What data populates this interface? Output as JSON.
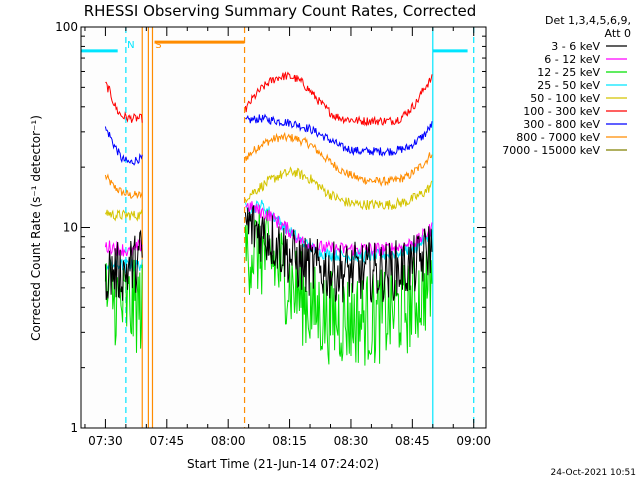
{
  "chart_data": {
    "type": "line",
    "title": "RHESSI Observing Summary Count Rates, Corrected",
    "xlabel": "Start Time (21-Jun-14 07:24:02)",
    "ylabel": "Corrected Count Rate (s⁻¹ detector⁻¹)",
    "yscale": "log",
    "ylim": [
      1,
      100
    ],
    "xlim": [
      "07:24:02",
      "09:03:00"
    ],
    "x_ticks": [
      "07:30",
      "07:45",
      "08:00",
      "08:15",
      "08:30",
      "08:45",
      "09:00"
    ],
    "y_ticks": [
      "1",
      "10",
      "100"
    ],
    "legend_header": [
      "Det 1,3,4,5,6,9,",
      "Att 0"
    ],
    "legend_placement": "right",
    "timestamp": "24-Oct-2021 10:51",
    "markers": [
      {
        "label": "N",
        "time": "07:35:00",
        "color": "#00e5ff",
        "style": "dashed"
      },
      {
        "label": "S",
        "time": "07:41:30",
        "color": "#ff8c00",
        "style": "solid"
      }
    ],
    "vertical_lines": [
      {
        "time": "07:39:00",
        "color": "#ff8c00",
        "style": "solid"
      },
      {
        "time": "07:40:30",
        "color": "#ff8c00",
        "style": "solid"
      },
      {
        "time": "08:04:00",
        "color": "#ff8c00",
        "style": "dashed"
      },
      {
        "time": "08:50:00",
        "color": "#00e5ff",
        "style": "solid"
      },
      {
        "time": "09:00:00",
        "color": "#00e5ff",
        "style": "dashed"
      }
    ],
    "bars": [
      {
        "color": "#00e5ff",
        "from": "07:24:02",
        "to": "07:33:00",
        "value": 76
      },
      {
        "color": "#00e5ff",
        "from": "08:50:00",
        "to": "08:58:30",
        "value": 76
      },
      {
        "color": "#ff8c00",
        "from": "07:42:00",
        "to": "08:04:00",
        "value": 84
      }
    ],
    "series": [
      {
        "name": "3 - 6 keV",
        "color": "#000000",
        "noise": 0.35,
        "points": [
          [
            "07:30",
            6
          ],
          [
            "07:31",
            6
          ],
          [
            "07:32",
            6
          ],
          [
            "07:33",
            6
          ],
          [
            "07:34",
            6
          ],
          [
            "07:35",
            6
          ],
          [
            "07:36",
            6.5
          ],
          [
            "07:37",
            6.5
          ],
          [
            "07:38",
            7
          ],
          [
            "07:39",
            7.5
          ],
          [
            "08:04",
            10.5
          ],
          [
            "08:06",
            10
          ],
          [
            "08:10",
            9
          ],
          [
            "08:14",
            7.5
          ],
          [
            "08:18",
            6.5
          ],
          [
            "08:22",
            6.2
          ],
          [
            "08:26",
            6
          ],
          [
            "08:30",
            6
          ],
          [
            "08:34",
            6
          ],
          [
            "08:38",
            6
          ],
          [
            "08:42",
            6.2
          ],
          [
            "08:46",
            6.5
          ],
          [
            "08:48",
            7.2
          ],
          [
            "08:50",
            8.5
          ]
        ],
        "gaps": [
          [
            "07:39:10",
            "08:04:00"
          ]
        ]
      },
      {
        "name": "6 - 12 keV",
        "color": "#ff00ff",
        "noise": 0.08,
        "points": [
          [
            "07:30",
            8
          ],
          [
            "07:32",
            8
          ],
          [
            "07:34",
            7.8
          ],
          [
            "07:36",
            7.5
          ],
          [
            "07:38",
            8
          ],
          [
            "07:39",
            8.2
          ],
          [
            "08:04",
            13
          ],
          [
            "08:06",
            12.5
          ],
          [
            "08:10",
            11.5
          ],
          [
            "08:14",
            10
          ],
          [
            "08:18",
            8.5
          ],
          [
            "08:22",
            8
          ],
          [
            "08:26",
            7.8
          ],
          [
            "08:30",
            7.8
          ],
          [
            "08:34",
            7.8
          ],
          [
            "08:38",
            7.8
          ],
          [
            "08:42",
            8
          ],
          [
            "08:46",
            8.5
          ],
          [
            "08:48",
            9.2
          ],
          [
            "08:50",
            10
          ]
        ],
        "gaps": [
          [
            "07:39:10",
            "08:04:00"
          ]
        ]
      },
      {
        "name": "12 - 25 keV",
        "color": "#00e000",
        "noise": 0.55,
        "points": [
          [
            "07:30",
            4.5
          ],
          [
            "07:32",
            4.5
          ],
          [
            "07:34",
            4
          ],
          [
            "07:36",
            4
          ],
          [
            "07:38",
            4
          ],
          [
            "07:39",
            4
          ],
          [
            "08:04",
            8
          ],
          [
            "08:08",
            7.5
          ],
          [
            "08:12",
            6.5
          ],
          [
            "08:16",
            5
          ],
          [
            "08:20",
            4
          ],
          [
            "08:24",
            3.6
          ],
          [
            "08:28",
            3.5
          ],
          [
            "08:32",
            3.5
          ],
          [
            "08:36",
            3.5
          ],
          [
            "08:40",
            3.8
          ],
          [
            "08:44",
            4
          ],
          [
            "08:48",
            5
          ],
          [
            "08:50",
            5.5
          ]
        ],
        "gaps": [
          [
            "07:39:10",
            "08:04:00"
          ]
        ]
      },
      {
        "name": "25 - 50 keV",
        "color": "#00e5ff",
        "noise": 0.07,
        "points": [
          [
            "07:30",
            6.5
          ],
          [
            "07:32",
            6.5
          ],
          [
            "07:34",
            6.5
          ],
          [
            "07:36",
            6.5
          ],
          [
            "07:38",
            6.5
          ],
          [
            "07:39",
            6.5
          ],
          [
            "08:04",
            12.5
          ],
          [
            "08:06",
            12.5
          ],
          [
            "08:08",
            13
          ],
          [
            "08:10",
            12
          ],
          [
            "08:14",
            10
          ],
          [
            "08:18",
            8.5
          ],
          [
            "08:22",
            7.5
          ],
          [
            "08:26",
            7.3
          ],
          [
            "08:30",
            7.2
          ],
          [
            "08:34",
            7.2
          ],
          [
            "08:38",
            7.3
          ],
          [
            "08:42",
            7.5
          ],
          [
            "08:46",
            8
          ],
          [
            "08:48",
            8.8
          ],
          [
            "08:50",
            9.5
          ]
        ],
        "gaps": [
          [
            "07:39:10",
            "08:04:00"
          ]
        ]
      },
      {
        "name": "50 - 100 keV",
        "color": "#d4c400",
        "noise": 0.06,
        "points": [
          [
            "07:30",
            12
          ],
          [
            "07:32",
            11.5
          ],
          [
            "07:34",
            11.5
          ],
          [
            "07:36",
            11.5
          ],
          [
            "07:38",
            11.5
          ],
          [
            "07:39",
            11.5
          ],
          [
            "08:04",
            14
          ],
          [
            "08:08",
            16
          ],
          [
            "08:12",
            18
          ],
          [
            "08:16",
            19
          ],
          [
            "08:20",
            17.5
          ],
          [
            "08:24",
            15
          ],
          [
            "08:28",
            13.5
          ],
          [
            "08:32",
            13
          ],
          [
            "08:36",
            13
          ],
          [
            "08:40",
            13
          ],
          [
            "08:44",
            13.5
          ],
          [
            "08:48",
            15
          ],
          [
            "08:50",
            16.5
          ]
        ],
        "gaps": [
          [
            "07:39:10",
            "08:04:00"
          ]
        ]
      },
      {
        "name": "100 - 300 keV",
        "color": "#ff0000",
        "noise": 0.05,
        "points": [
          [
            "07:30",
            52
          ],
          [
            "07:31",
            48
          ],
          [
            "07:32",
            42
          ],
          [
            "07:33",
            38
          ],
          [
            "07:34",
            36
          ],
          [
            "07:36",
            35
          ],
          [
            "07:38",
            35
          ],
          [
            "07:39",
            35
          ],
          [
            "08:04",
            38
          ],
          [
            "08:06",
            44
          ],
          [
            "08:08",
            49
          ],
          [
            "08:10",
            53
          ],
          [
            "08:12",
            56
          ],
          [
            "08:14",
            57
          ],
          [
            "08:16",
            56
          ],
          [
            "08:18",
            53
          ],
          [
            "08:20",
            48
          ],
          [
            "08:22",
            43
          ],
          [
            "08:24",
            39
          ],
          [
            "08:26",
            36
          ],
          [
            "08:28",
            35
          ],
          [
            "08:32",
            34
          ],
          [
            "08:36",
            34
          ],
          [
            "08:40",
            34
          ],
          [
            "08:42",
            35
          ],
          [
            "08:44",
            38
          ],
          [
            "08:46",
            42
          ],
          [
            "08:48",
            50
          ],
          [
            "08:50",
            56
          ]
        ],
        "gaps": [
          [
            "07:39:10",
            "08:04:00"
          ]
        ]
      },
      {
        "name": "300 - 800 keV",
        "color": "#0000ff",
        "noise": 0.05,
        "points": [
          [
            "07:30",
            31
          ],
          [
            "07:31",
            29
          ],
          [
            "07:32",
            26
          ],
          [
            "07:33",
            24
          ],
          [
            "07:34",
            22
          ],
          [
            "07:36",
            21
          ],
          [
            "07:38",
            22
          ],
          [
            "07:39",
            22
          ],
          [
            "08:04",
            34
          ],
          [
            "08:08",
            35
          ],
          [
            "08:12",
            34
          ],
          [
            "08:16",
            33
          ],
          [
            "08:20",
            31
          ],
          [
            "08:24",
            28
          ],
          [
            "08:28",
            25
          ],
          [
            "08:32",
            24
          ],
          [
            "08:36",
            24
          ],
          [
            "08:40",
            24
          ],
          [
            "08:44",
            25
          ],
          [
            "08:48",
            29
          ],
          [
            "08:50",
            33
          ]
        ],
        "gaps": [
          [
            "07:39:10",
            "08:04:00"
          ]
        ]
      },
      {
        "name": "800 - 7000 keV",
        "color": "#ff8c00",
        "noise": 0.05,
        "points": [
          [
            "07:30",
            18
          ],
          [
            "07:31",
            17
          ],
          [
            "07:32",
            16
          ],
          [
            "07:34",
            15
          ],
          [
            "07:36",
            14.5
          ],
          [
            "07:38",
            14.5
          ],
          [
            "07:39",
            14.5
          ],
          [
            "08:04",
            22
          ],
          [
            "08:08",
            26
          ],
          [
            "08:12",
            28
          ],
          [
            "08:16",
            28
          ],
          [
            "08:20",
            26
          ],
          [
            "08:24",
            22
          ],
          [
            "08:28",
            19
          ],
          [
            "08:32",
            17.5
          ],
          [
            "08:36",
            17
          ],
          [
            "08:40",
            17
          ],
          [
            "08:44",
            18
          ],
          [
            "08:48",
            21
          ],
          [
            "08:50",
            24
          ]
        ],
        "gaps": [
          [
            "07:39:10",
            "08:04:00"
          ]
        ]
      },
      {
        "name": "7000 - 15000 keV",
        "color": "#808000",
        "noise": 0,
        "points": [],
        "gaps": []
      }
    ]
  }
}
